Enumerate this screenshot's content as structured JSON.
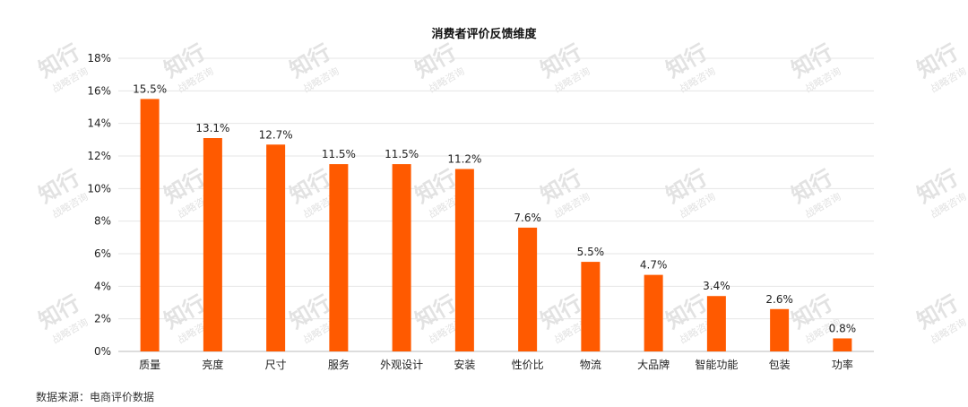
{
  "watermark": {
    "main": "知行",
    "sub": "战略咨询"
  },
  "source_note": "数据来源：电商评价数据",
  "colors": {
    "bar": "#ff5a00",
    "grid": "#e6e6e6",
    "axis": "#bbbbbb",
    "text": "#222222",
    "watermark": "#e2e2e2"
  },
  "chart_data": {
    "type": "bar",
    "title": "消费者评价反馈维度",
    "xlabel": "",
    "ylabel": "",
    "categories": [
      "质量",
      "亮度",
      "尺寸",
      "服务",
      "外观设计",
      "安装",
      "性价比",
      "物流",
      "大品牌",
      "智能功能",
      "包装",
      "功率"
    ],
    "values": [
      15.5,
      13.1,
      12.7,
      11.5,
      11.5,
      11.2,
      7.6,
      5.5,
      4.7,
      3.4,
      2.6,
      0.8
    ],
    "data_labels": [
      "15.5%",
      "13.1%",
      "12.7%",
      "11.5%",
      "11.5%",
      "11.2%",
      "7.6%",
      "5.5%",
      "4.7%",
      "3.4%",
      "2.6%",
      "0.8%"
    ],
    "ylim": [
      0,
      18
    ],
    "yticks": [
      0,
      2,
      4,
      6,
      8,
      10,
      12,
      14,
      16,
      18
    ],
    "ytick_labels": [
      "0%",
      "2%",
      "4%",
      "6%",
      "8%",
      "10%",
      "12%",
      "14%",
      "16%",
      "18%"
    ],
    "grid": true,
    "legend": "none"
  }
}
